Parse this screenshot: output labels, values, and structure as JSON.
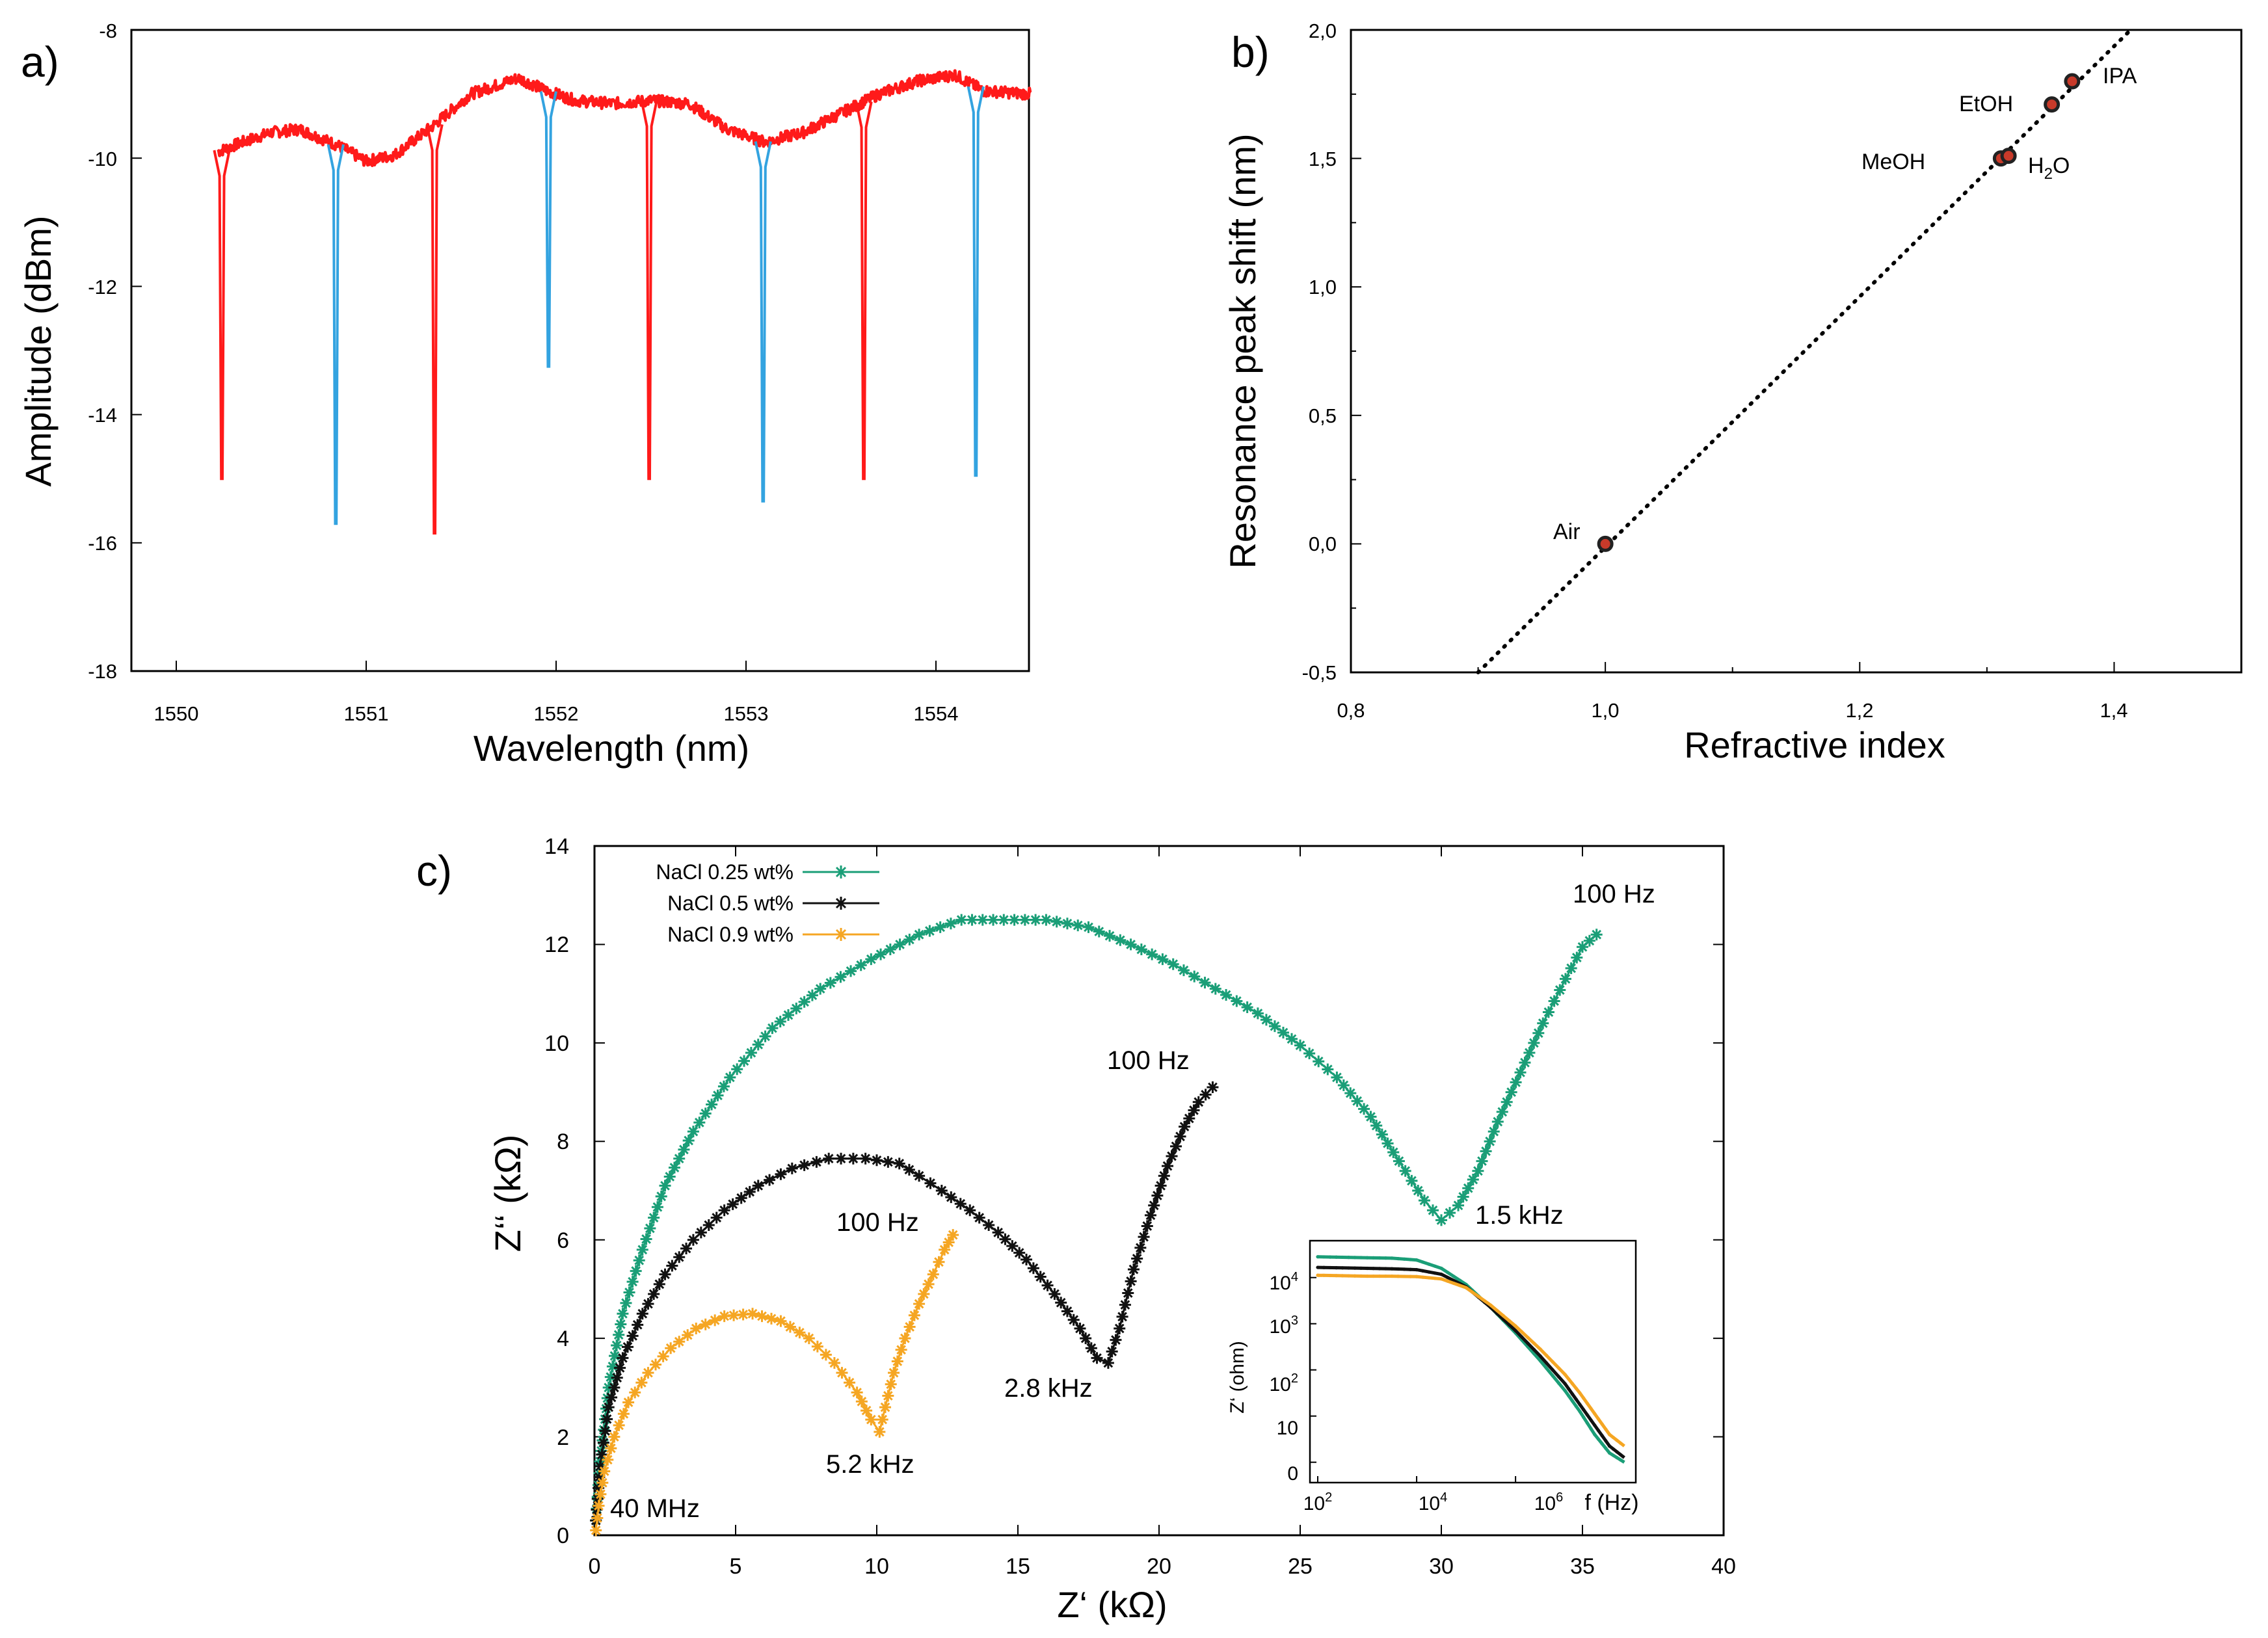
{
  "chart_data": [
    {
      "panel_label": "a)",
      "type": "line",
      "title": "",
      "xlabel": "Wavelength (nm)",
      "ylabel": "Amplitude (dBm)",
      "xlim": [
        1549.85,
        1554.5
      ],
      "ylim": [
        -18,
        -8
      ],
      "xticks": [
        1550,
        1551,
        1552,
        1553,
        1554
      ],
      "yticks": [
        -18,
        -16,
        -14,
        -12,
        -10,
        -8
      ],
      "xtick_labels": [
        "1550",
        "1551",
        "1552",
        "1553",
        "1554"
      ],
      "ytick_labels": [
        "-18",
        "-16",
        "-14",
        "-12",
        "-10",
        "-8"
      ],
      "colors": {
        "baseline": "#ff1a1a",
        "dip_red": "#ff1a1a",
        "dip_blue": "#33a3e0"
      },
      "baseline": {
        "x": [
          1550.22,
          1550.35,
          1550.5,
          1550.65,
          1550.85,
          1551.0,
          1551.15,
          1551.35,
          1551.55,
          1551.8,
          1551.95,
          1552.1,
          1552.3,
          1552.5,
          1552.7,
          1552.9,
          1553.1,
          1553.3,
          1553.5,
          1553.7,
          1553.9,
          1554.1,
          1554.25,
          1554.5
        ],
        "y": [
          -9.9,
          -9.75,
          -9.6,
          -9.55,
          -9.8,
          -10.05,
          -9.95,
          -9.5,
          -9.0,
          -8.75,
          -8.95,
          -9.1,
          -9.15,
          -9.1,
          -9.15,
          -9.55,
          -9.75,
          -9.6,
          -9.3,
          -9.0,
          -8.8,
          -8.7,
          -8.95,
          -9.0
        ]
      },
      "dips": [
        {
          "x": 1550.24,
          "depth": -15.0,
          "color": "red"
        },
        {
          "x": 1550.84,
          "depth": -15.7,
          "color": "blue"
        },
        {
          "x": 1551.36,
          "depth": -15.85,
          "color": "red"
        },
        {
          "x": 1551.96,
          "depth": -13.25,
          "color": "blue"
        },
        {
          "x": 1552.49,
          "depth": -15.0,
          "color": "red"
        },
        {
          "x": 1553.09,
          "depth": -15.35,
          "color": "blue"
        },
        {
          "x": 1553.62,
          "depth": -15.0,
          "color": "red"
        },
        {
          "x": 1554.21,
          "depth": -14.95,
          "color": "blue"
        }
      ]
    },
    {
      "panel_label": "b)",
      "type": "scatter",
      "title": "",
      "xlabel": "Refractive index",
      "ylabel": "Resonance peak shift (nm)",
      "xlim": [
        0.8,
        1.5
      ],
      "ylim": [
        -0.5,
        2.0
      ],
      "xticks": [
        0.8,
        1.0,
        1.2,
        1.4
      ],
      "yticks": [
        -0.5,
        0.0,
        0.5,
        1.0,
        1.5,
        2.0
      ],
      "xtick_labels": [
        "0,8",
        "1,0",
        "1,2",
        "1,4"
      ],
      "ytick_labels": [
        "-0,5",
        "0,0",
        "0,5",
        "1,0",
        "1,5",
        "2,0"
      ],
      "fit_line": {
        "x": [
          0.9,
          1.413
        ],
        "y": [
          -0.5,
          2.0
        ],
        "style": "dotted"
      },
      "points": [
        {
          "label": "Air",
          "x": 1.0,
          "y": 0.0
        },
        {
          "label": "MeOH",
          "x": 1.311,
          "y": 1.5
        },
        {
          "label": "H",
          "label_sub": "2",
          "label_tail": "O",
          "x": 1.317,
          "y": 1.51
        },
        {
          "label": "EtOH",
          "x": 1.351,
          "y": 1.71
        },
        {
          "label": "IPA",
          "x": 1.367,
          "y": 1.8
        }
      ],
      "colors": {
        "marker_fill": "#c83a2a",
        "marker_edge": "#222222",
        "fit": "#000000"
      }
    },
    {
      "panel_label": "c)",
      "type": "scatter",
      "title": "",
      "xlabel": "Z‘ (kΩ)",
      "ylabel": "Z‘‘ (kΩ)",
      "xlim": [
        0,
        40
      ],
      "ylim": [
        0,
        14
      ],
      "xticks": [
        0,
        5,
        10,
        15,
        20,
        25,
        30,
        35,
        40
      ],
      "yticks": [
        0,
        2,
        4,
        6,
        8,
        10,
        12,
        14
      ],
      "xtick_labels": [
        "0",
        "5",
        "10",
        "15",
        "20",
        "25",
        "30",
        "35",
        "40"
      ],
      "ytick_labels": [
        "0",
        "2",
        "4",
        "6",
        "8",
        "10",
        "12",
        "14"
      ],
      "legend": {
        "placement": "top-left"
      },
      "series": [
        {
          "name": "NaCl 0.25 wt%",
          "color": "#1a9e77",
          "x": [
            0.05,
            0.2,
            0.5,
            1.0,
            1.7,
            2.5,
            3.5,
            4.8,
            6.3,
            8.0,
            9.8,
            11.5,
            13.0,
            14.5,
            16.0,
            17.5,
            19.0,
            20.5,
            22.0,
            23.5,
            25.0,
            26.3,
            27.5,
            28.5,
            29.4,
            30.0,
            30.6,
            31.3,
            32.0,
            32.8,
            33.6,
            34.4,
            35.0,
            35.5
          ],
          "y": [
            0.3,
            1.5,
            3.0,
            4.5,
            5.8,
            7.1,
            8.2,
            9.3,
            10.3,
            11.1,
            11.7,
            12.2,
            12.5,
            12.5,
            12.5,
            12.35,
            12.0,
            11.6,
            11.1,
            10.6,
            9.95,
            9.3,
            8.5,
            7.6,
            6.8,
            6.4,
            6.7,
            7.4,
            8.4,
            9.4,
            10.4,
            11.3,
            11.95,
            12.2
          ]
        },
        {
          "name": "NaCl 0.5 wt%",
          "color": "#111111",
          "x": [
            0.05,
            0.2,
            0.5,
            1.0,
            1.7,
            2.5,
            3.5,
            4.6,
            5.8,
            7.0,
            8.3,
            9.6,
            10.8,
            11.5,
            12.3,
            13.3,
            14.3,
            15.3,
            16.3,
            17.2,
            17.8,
            18.2,
            18.6,
            19.1,
            19.7,
            20.3,
            20.9,
            21.4,
            21.9
          ],
          "y": [
            0.3,
            1.4,
            2.6,
            3.6,
            4.5,
            5.3,
            6.0,
            6.6,
            7.1,
            7.45,
            7.65,
            7.65,
            7.55,
            7.3,
            7.0,
            6.6,
            6.15,
            5.6,
            4.9,
            4.2,
            3.6,
            3.5,
            4.2,
            5.4,
            6.5,
            7.5,
            8.3,
            8.8,
            9.1
          ]
        },
        {
          "name": "NaCl 0.9 wt%",
          "color": "#f5a623",
          "x": [
            0.05,
            0.15,
            0.35,
            0.7,
            1.2,
            1.9,
            2.7,
            3.6,
            4.6,
            5.6,
            6.6,
            7.6,
            8.5,
            9.3,
            9.8,
            10.1,
            10.3,
            10.6,
            11.0,
            11.5,
            12.0,
            12.4,
            12.7
          ],
          "y": [
            0.1,
            0.6,
            1.3,
            2.0,
            2.7,
            3.3,
            3.8,
            4.2,
            4.45,
            4.5,
            4.35,
            4.0,
            3.5,
            2.9,
            2.35,
            2.1,
            2.6,
            3.3,
            4.0,
            4.7,
            5.3,
            5.8,
            6.1
          ]
        }
      ],
      "annotations": [
        {
          "text": "100 Hz",
          "x": 35.9,
          "y": 12.9
        },
        {
          "text": "100 Hz",
          "x": 19.3,
          "y": 9.75
        },
        {
          "text": "100 Hz",
          "x": 8.5,
          "y": 6.3
        },
        {
          "text": "1.5 kHz",
          "x": 31.2,
          "y": 6.5
        },
        {
          "text": "2.8 kHz",
          "x": 15.9,
          "y": 2.9
        },
        {
          "text": "5.2 kHz",
          "x": 8.2,
          "y": 1.35
        },
        {
          "text": "40 MHz",
          "x": 0.5,
          "y": 0.45
        }
      ],
      "inset": {
        "type": "line",
        "xlabel": "f (Hz)",
        "ylabel": "Z‘ (ohm)",
        "x_log_range": [
          2,
          8.3
        ],
        "y_log_range": [
          -0.3,
          4.7
        ],
        "xtick_base": [
          "10",
          "10",
          "10"
        ],
        "xtick_exp": [
          "2",
          "4",
          "6"
        ],
        "xtick_pos": [
          2,
          4,
          6
        ],
        "ytick_labels": [
          "0",
          "10",
          "10",
          "10",
          "10"
        ],
        "ytick_exp": [
          "",
          "",
          "2",
          "3",
          "4"
        ],
        "ytick_pos": [
          0,
          1,
          2,
          3,
          4
        ],
        "series": [
          {
            "name": "NaCl 0.25 wt%",
            "log_f": [
              2.0,
              2.5,
              3.0,
              3.5,
              4.0,
              4.5,
              5.0,
              5.5,
              6.0,
              6.5,
              7.0,
              7.3,
              7.6,
              7.9,
              8.2
            ],
            "log_z": [
              4.45,
              4.44,
              4.43,
              4.42,
              4.38,
              4.2,
              3.85,
              3.35,
              2.8,
              2.2,
              1.55,
              1.1,
              0.6,
              0.2,
              0.0
            ]
          },
          {
            "name": "NaCl 0.5 wt%",
            "log_f": [
              2.0,
              2.5,
              3.0,
              3.5,
              4.0,
              4.5,
              5.0,
              5.5,
              6.0,
              6.5,
              7.0,
              7.3,
              7.6,
              7.9,
              8.2
            ],
            "log_z": [
              4.22,
              4.21,
              4.2,
              4.19,
              4.17,
              4.07,
              3.8,
              3.35,
              2.85,
              2.3,
              1.7,
              1.25,
              0.8,
              0.35,
              0.1
            ]
          },
          {
            "name": "NaCl 0.9 wt%",
            "log_f": [
              2.0,
              2.5,
              3.0,
              3.5,
              4.0,
              4.5,
              5.0,
              5.5,
              6.0,
              6.5,
              7.0,
              7.3,
              7.6,
              7.9,
              8.2
            ],
            "log_z": [
              4.05,
              4.04,
              4.03,
              4.03,
              4.02,
              3.97,
              3.78,
              3.4,
              2.95,
              2.45,
              1.9,
              1.5,
              1.05,
              0.6,
              0.35
            ]
          }
        ]
      }
    }
  ]
}
